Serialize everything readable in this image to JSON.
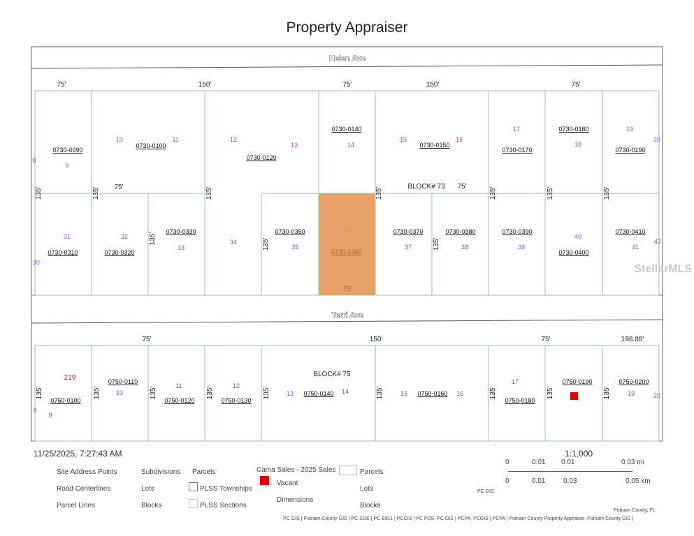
{
  "title": "Property Appraiser",
  "roads": [
    "Helen Ave",
    "Terri Ave"
  ],
  "colors": {
    "selected_parcel": "#E9A068",
    "parcel_line": "#9cc79c",
    "lot_number": "#9b4fc7",
    "vacant": "#e00000"
  },
  "parcel_ids": [
    "0730-0090",
    "0730-0100",
    "0730-0120",
    "0730-0140",
    "0730-0150",
    "0730-0170",
    "0730-0180",
    "0730-0190",
    "0730-0310",
    "0730-0320",
    "0730-0330",
    "0730-0350",
    "0730-0360",
    "0730-0370",
    "0730-0380",
    "0730-0390",
    "0730-0400",
    "0730-0410",
    "0750-0100",
    "0750-0110",
    "0750-0120",
    "0750-0130",
    "0750-0140",
    "0750-0160",
    "0750-0180",
    "0750-0190",
    "0750-0200"
  ],
  "lot_numbers": [
    "8",
    "9",
    "10",
    "11",
    "12",
    "13",
    "14",
    "15",
    "16",
    "17",
    "18",
    "19",
    "20",
    "31",
    "30",
    "32",
    "33",
    "34",
    "35",
    "36",
    "37",
    "38",
    "39",
    "40",
    "41",
    "42",
    "8",
    "9",
    "10",
    "11",
    "12",
    "13",
    "14",
    "15",
    "16",
    "17",
    "19",
    "20"
  ],
  "dimensions": [
    "75'",
    "150'",
    "75'",
    "150'",
    "75'",
    "75'",
    "75'",
    "75'",
    "75'",
    "150'",
    "75'",
    "198.88'"
  ],
  "depth_label": "135'",
  "blocks": [
    "BLOCK# 73",
    "BLOCK# 75"
  ],
  "address_number": "219",
  "timestamp": "11/25/2025, 7:27:43 AM",
  "legend": {
    "col1": [
      "Site Address Points",
      "Road Centerlines",
      "Parcel Lines"
    ],
    "col2": [
      "Subdivisions",
      "Lots",
      "Blocks"
    ],
    "col3": [
      "Parcels",
      "PLSS Townships",
      "PLSS Sections"
    ],
    "cama_title": "Cama Sales - 2025 Sales",
    "vacant": "Vacant",
    "dimensions": "Dimensions",
    "col5": [
      "Parcels",
      "Lots",
      "Blocks"
    ]
  },
  "scale": {
    "ratio": "1:1,000",
    "mi_ticks": [
      "0",
      "0.01",
      "0.01",
      "0.03 mi"
    ],
    "km_ticks": [
      "0",
      "0.01",
      "0.03",
      "0.05 km"
    ]
  },
  "credits": {
    "pc_gis": "PC GIS",
    "county": "Putnam County, FL",
    "attribution": "PC GIS | Putnam County GIS | PC SOE | PC E911 | PCGIS | PC PDS, PC GIS | PCPA, PCGIS | PCPA | Putnam County Property Appraiser, Putnam County GIS |"
  },
  "watermark": "StellarMLS"
}
